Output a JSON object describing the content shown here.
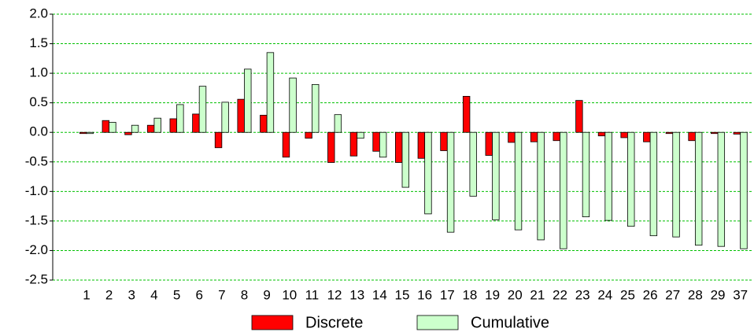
{
  "chart_data": {
    "type": "bar",
    "categories": [
      null,
      "1",
      "2",
      "3",
      "4",
      "5",
      "6",
      "7",
      "8",
      "9",
      "10",
      "11",
      "12",
      "13",
      "14",
      "15",
      "16",
      "17",
      "18",
      "19",
      "20",
      "21",
      "22",
      "23",
      "24",
      "25",
      "26",
      "27",
      "28",
      "29",
      "37"
    ],
    "series": [
      {
        "name": "Discrete",
        "color": "#ff0000",
        "values": [
          null,
          -0.02,
          0.2,
          -0.04,
          0.12,
          0.23,
          0.31,
          -0.26,
          0.56,
          0.29,
          -0.42,
          -0.1,
          -0.51,
          -0.4,
          -0.32,
          -0.51,
          -0.44,
          -0.31,
          0.61,
          -0.39,
          -0.17,
          -0.16,
          -0.14,
          0.54,
          -0.06,
          -0.09,
          -0.16,
          -0.02,
          -0.14,
          -0.02,
          -0.03
        ]
      },
      {
        "name": "Cumulative",
        "color": "#ccffcc",
        "values": [
          null,
          -0.02,
          0.17,
          0.12,
          0.24,
          0.47,
          0.78,
          0.51,
          1.07,
          1.35,
          0.92,
          0.81,
          0.3,
          -0.1,
          -0.42,
          -0.93,
          -1.38,
          -1.69,
          -1.08,
          -1.48,
          -1.65,
          -1.82,
          -1.97,
          -1.43,
          -1.49,
          -1.59,
          -1.75,
          -1.77,
          -1.91,
          -1.93,
          -1.97
        ]
      }
    ],
    "ylim": [
      -2.5,
      2.0
    ],
    "yticks": [
      {
        "value": 2,
        "label": "2.0"
      },
      1.5,
      {
        "value": 1,
        "label": "1.0"
      },
      0.5,
      {
        "value": 0,
        "label": "0.0"
      },
      -0.5,
      {
        "value": -1,
        "label": "-1.0"
      },
      -1.5,
      {
        "value": -2,
        "label": "-2.0"
      },
      -2.5
    ],
    "grid": true,
    "grid_color": "#00c000",
    "legend": "bottom"
  }
}
